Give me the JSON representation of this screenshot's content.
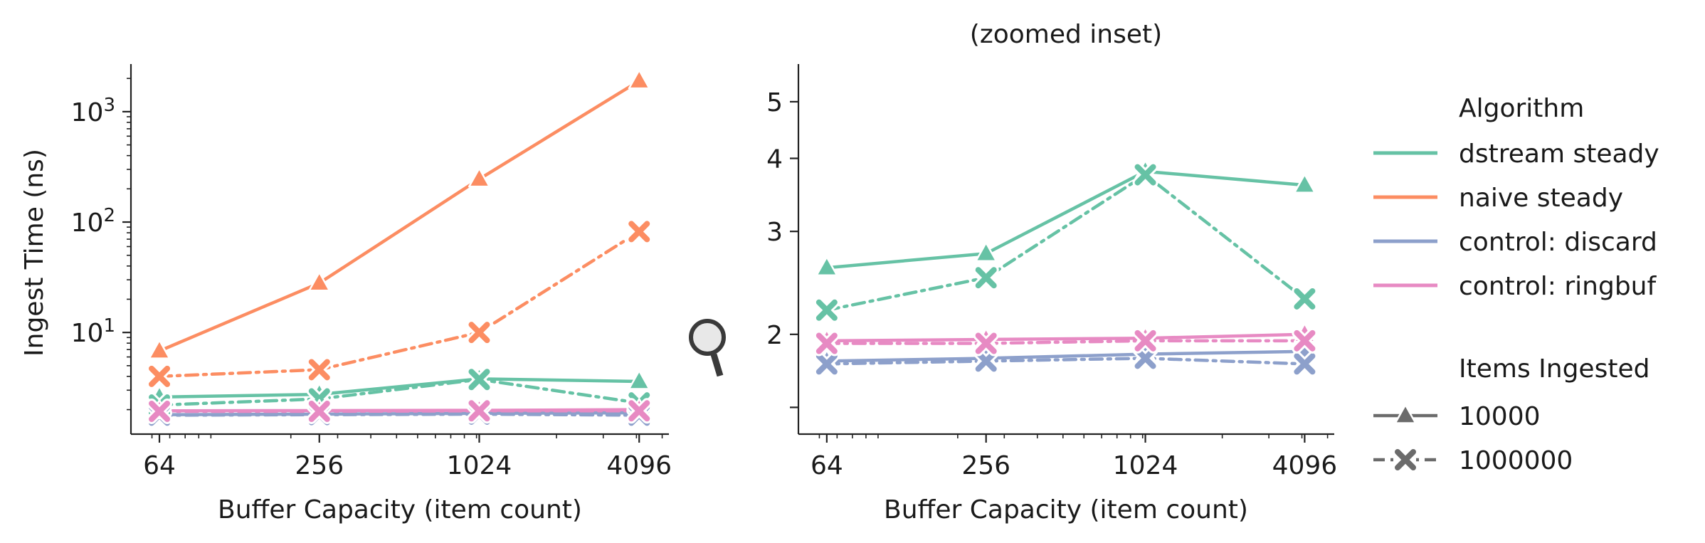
{
  "chart_data": [
    {
      "type": "line",
      "title": "",
      "xlabel": "Buffer Capacity (item count)",
      "ylabel": "Ingest Time (ns)",
      "xscale": "log2",
      "yscale": "log10",
      "xlim": [
        50,
        5300
      ],
      "ylim": [
        1.2,
        2700
      ],
      "x_ticks": [
        64,
        256,
        1024,
        4096
      ],
      "x_tick_labels": [
        "64",
        "256",
        "1024",
        "4096"
      ],
      "y_major_ticks": [
        10,
        100,
        1000
      ],
      "y_tick_labels": [
        "10^1",
        "10^2",
        "10^3"
      ],
      "x": [
        64,
        256,
        1024,
        4096
      ],
      "series": [
        {
          "name": "dstream steady",
          "items": "10000",
          "color": "#66c2a5",
          "marker": "triangle",
          "dash": "solid",
          "values": [
            2.6,
            2.75,
            3.8,
            3.6
          ]
        },
        {
          "name": "dstream steady",
          "items": "1000000",
          "color": "#66c2a5",
          "marker": "x",
          "dash": "dashed",
          "values": [
            2.2,
            2.5,
            3.75,
            2.3
          ]
        },
        {
          "name": "naive steady",
          "items": "10000",
          "color": "#fc8d62",
          "marker": "triangle",
          "dash": "solid",
          "values": [
            6.8,
            28,
            245,
            1900
          ]
        },
        {
          "name": "naive steady",
          "items": "1000000",
          "color": "#fc8d62",
          "marker": "x",
          "dash": "dashed",
          "values": [
            4.0,
            4.6,
            10,
            82
          ]
        },
        {
          "name": "control: discard",
          "items": "10000",
          "color": "#8da0cb",
          "marker": "triangle",
          "dash": "solid",
          "values": [
            1.8,
            1.82,
            1.85,
            1.87
          ]
        },
        {
          "name": "control: discard",
          "items": "1000000",
          "color": "#8da0cb",
          "marker": "x",
          "dash": "dashed",
          "values": [
            1.78,
            1.8,
            1.82,
            1.78
          ]
        },
        {
          "name": "control: ringbuf",
          "items": "10000",
          "color": "#e78ac3",
          "marker": "triangle",
          "dash": "solid",
          "values": [
            1.95,
            1.96,
            1.97,
            2.0
          ]
        },
        {
          "name": "control: ringbuf",
          "items": "1000000",
          "color": "#e78ac3",
          "marker": "x",
          "dash": "dashed",
          "values": [
            1.93,
            1.93,
            1.95,
            1.95
          ]
        }
      ],
      "grid": false
    },
    {
      "type": "line",
      "title": "(zoomed inset)",
      "xlabel": "Buffer Capacity (item count)",
      "ylabel": "",
      "xscale": "log2",
      "yscale": "log",
      "xlim": [
        50,
        5300
      ],
      "ylim": [
        1.35,
        5.8
      ],
      "x_ticks": [
        64,
        256,
        1024,
        4096
      ],
      "x_tick_labels": [
        "64",
        "256",
        "1024",
        "4096"
      ],
      "y_ticks": [
        2,
        3,
        4,
        5
      ],
      "y_tick_labels": [
        "2",
        "3",
        "4",
        "5"
      ],
      "x": [
        64,
        256,
        1024,
        4096
      ],
      "series": [
        {
          "name": "dstream steady",
          "items": "10000",
          "color": "#66c2a5",
          "marker": "triangle",
          "dash": "solid",
          "values": [
            2.6,
            2.75,
            3.8,
            3.6
          ]
        },
        {
          "name": "dstream steady",
          "items": "1000000",
          "color": "#66c2a5",
          "marker": "x",
          "dash": "dashed",
          "values": [
            2.2,
            2.5,
            3.75,
            2.3
          ]
        },
        {
          "name": "control: discard",
          "items": "10000",
          "color": "#8da0cb",
          "marker": "triangle",
          "dash": "solid",
          "values": [
            1.8,
            1.82,
            1.85,
            1.87
          ]
        },
        {
          "name": "control: discard",
          "items": "1000000",
          "color": "#8da0cb",
          "marker": "x",
          "dash": "dashed",
          "values": [
            1.78,
            1.8,
            1.82,
            1.78
          ]
        },
        {
          "name": "control: ringbuf",
          "items": "10000",
          "color": "#e78ac3",
          "marker": "triangle",
          "dash": "solid",
          "values": [
            1.95,
            1.96,
            1.97,
            2.0
          ]
        },
        {
          "name": "control: ringbuf",
          "items": "1000000",
          "color": "#e78ac3",
          "marker": "x",
          "dash": "dashed",
          "values": [
            1.93,
            1.93,
            1.95,
            1.95
          ]
        }
      ],
      "grid": false
    }
  ],
  "legend": {
    "placement": "right",
    "algorithm_title": "Algorithm",
    "algorithms": [
      {
        "label": "dstream steady",
        "color": "#66c2a5"
      },
      {
        "label": "naive steady",
        "color": "#fc8d62"
      },
      {
        "label": "control: discard",
        "color": "#8da0cb"
      },
      {
        "label": "control: ringbuf",
        "color": "#e78ac3"
      }
    ],
    "items_title": "Items Ingested",
    "items": [
      {
        "label": "10000",
        "marker": "triangle",
        "dash": "solid"
      },
      {
        "label": "1000000",
        "marker": "x",
        "dash": "dashed"
      }
    ],
    "style_color": "#6b6b6b"
  },
  "icons": {
    "zoom": "magnifier-icon"
  }
}
